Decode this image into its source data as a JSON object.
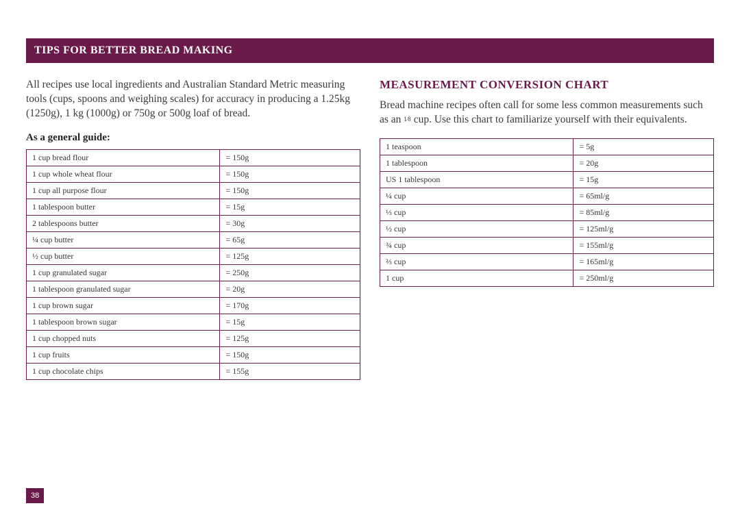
{
  "colors": {
    "accent": "#6a1a4a",
    "text": "#2a2a2a",
    "background": "#ffffff"
  },
  "banner": {
    "title": "TIPS FOR BETTER BREAD MAKING"
  },
  "left": {
    "intro": "All recipes use local ingredients and Australian Standard Metric measuring tools (cups, spoons and weighing scales) for accuracy in producing a 1.25kg (1250g), 1 kg (1000g) or 750g or 500g loaf of bread.",
    "subhead": "As a general guide:",
    "table": {
      "rows": [
        {
          "measure": "1 cup bread flour",
          "value": "= 150g"
        },
        {
          "measure": "1 cup whole wheat flour",
          "value": "= 150g"
        },
        {
          "measure": "1 cup all purpose flour",
          "value": "= 150g"
        },
        {
          "measure": "1 tablespoon butter",
          "value": "= 15g"
        },
        {
          "measure": "2 tablespoons butter",
          "value": "= 30g"
        },
        {
          "measure": "¼ cup butter",
          "value": "= 65g"
        },
        {
          "measure": "½ cup butter",
          "value": "= 125g"
        },
        {
          "measure": "1 cup granulated sugar",
          "value": "= 250g"
        },
        {
          "measure": "1 tablespoon granulated sugar",
          "value": "= 20g"
        },
        {
          "measure": "1 cup brown sugar",
          "value": "= 170g"
        },
        {
          "measure": "1 tablespoon brown sugar",
          "value": "= 15g"
        },
        {
          "measure": "1 cup chopped nuts",
          "value": "= 125g"
        },
        {
          "measure": "1 cup fruits",
          "value": "= 150g"
        },
        {
          "measure": "1 cup chocolate chips",
          "value": "= 155g"
        }
      ]
    }
  },
  "right": {
    "title": "MEASUREMENT CONVERSION CHART",
    "intro_pre": "Bread machine recipes often call for some less common measurements such as an ",
    "intro_frac": "1⁄8",
    "intro_post": " cup. Use this chart to familiarize yourself with their equivalents.",
    "table": {
      "rows": [
        {
          "measure": "1 teaspoon",
          "value": "= 5g"
        },
        {
          "measure": "1 tablespoon",
          "value": "= 20g"
        },
        {
          "measure": "US 1 tablespoon",
          "value": "= 15g"
        },
        {
          "measure": "¼ cup",
          "value": "= 65ml/g"
        },
        {
          "measure": "⅓ cup",
          "value": "= 85ml/g"
        },
        {
          "measure": "½ cup",
          "value": "= 125ml/g"
        },
        {
          "measure": "¾ cup",
          "value": "= 155ml/g"
        },
        {
          "measure": "⅔ cup",
          "value": "= 165ml/g"
        },
        {
          "measure": "1 cup",
          "value": "= 250ml/g"
        }
      ]
    }
  },
  "page_number": "38"
}
